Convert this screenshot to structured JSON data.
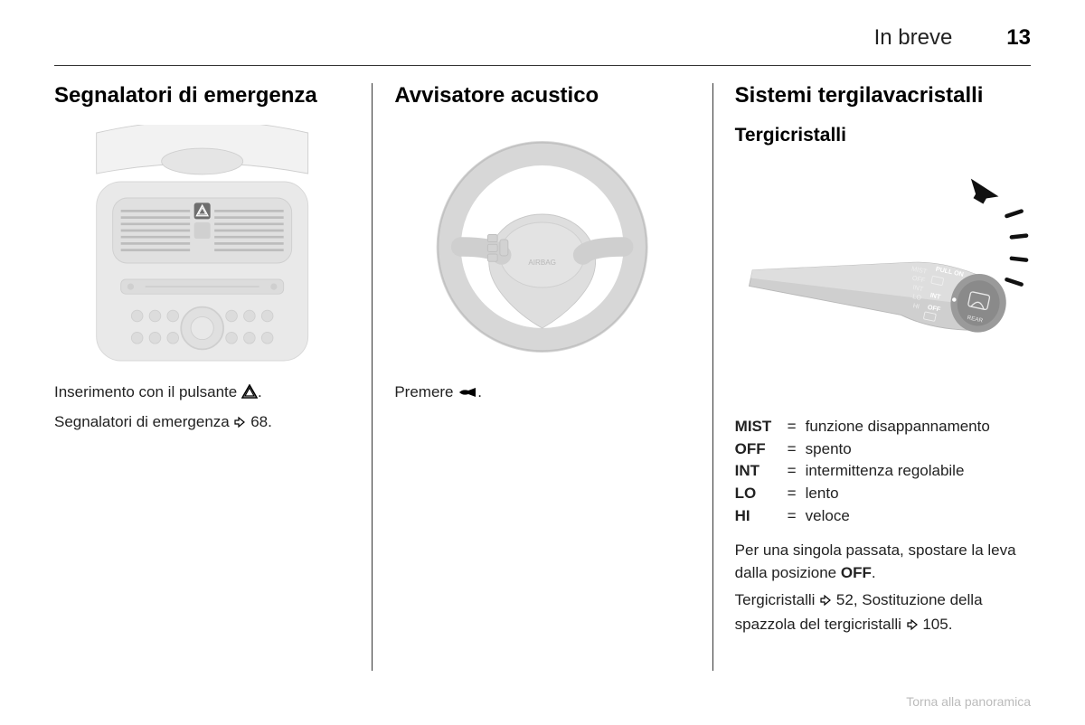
{
  "header": {
    "title": "In breve",
    "page": "13"
  },
  "col1": {
    "title": "Segnalatori di emergenza",
    "line1a": "Inserimento con il pulsante ",
    "line1b": ".",
    "line2a": "Segnalatori di emergenza ",
    "line2b": " 68.",
    "hazard_icon_name": "hazard-triangle-icon",
    "link_icon_name": "page-link-icon"
  },
  "col2": {
    "title": "Avvisatore acustico",
    "line1a": "Premere ",
    "line1b": ".",
    "horn_icon_name": "horn-icon"
  },
  "col3": {
    "title": "Sistemi tergilavacristalli",
    "subtitle": "Tergicristalli",
    "defs": [
      {
        "key": "MIST",
        "val": "funzione disappannamento"
      },
      {
        "key": "OFF",
        "val": "spento"
      },
      {
        "key": "INT",
        "val": "intermittenza regolabile"
      },
      {
        "key": "LO",
        "val": "lento"
      },
      {
        "key": "HI",
        "val": "veloce"
      }
    ],
    "para1a": "Per una singola passata, spostare la leva dalla posizione ",
    "para1_bold": "OFF",
    "para1b": ".",
    "para2a": "Tergicristalli ",
    "para2b": " 52, Sostituzione della spazzola del tergicristalli ",
    "para2c": " 105.",
    "link_icon_name": "page-link-icon"
  },
  "footer": {
    "text": "Torna alla panoramica"
  },
  "style": {
    "illus_gray1": "#e5e5e5",
    "illus_gray2": "#d7d7d7",
    "illus_gray3": "#cfcfcf",
    "illus_gray4": "#c2c2c2",
    "illus_dark": "#6e6e6e",
    "arrow_black": "#111111"
  }
}
